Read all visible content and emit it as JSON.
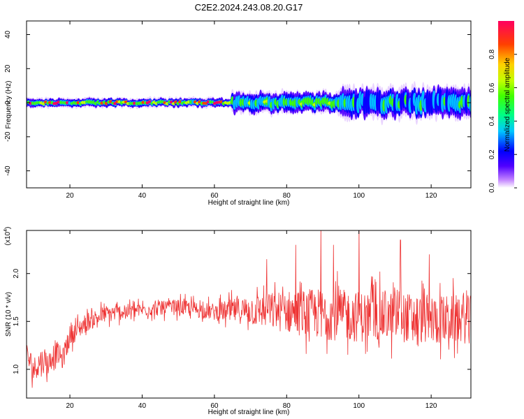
{
  "title": "C2E2.2024.243.08.20.G17",
  "chart_data": [
    {
      "type": "heatmap",
      "title": "C2E2.2024.243.08.20.G17",
      "xlabel": "Height of straight line (km)",
      "ylabel": "Frequency (Hz)",
      "xlim": [
        8,
        131
      ],
      "ylim": [
        -50,
        48
      ],
      "xticks": [
        20,
        40,
        60,
        80,
        100,
        120
      ],
      "yticks": [
        -40,
        -20,
        0,
        20,
        40
      ],
      "colorbar": {
        "label": "Normalized spectral amplitude",
        "range": [
          0.0,
          1.0
        ],
        "ticks": [
          "0.0",
          "0.2",
          "0.4",
          "0.6",
          "0.8"
        ],
        "tick_values": [
          0.0,
          0.2,
          0.4,
          0.6,
          0.8
        ],
        "colors": [
          "#ffffff",
          "#c080ff",
          "#5000ff",
          "#0000ff",
          "#00c8ff",
          "#00ff80",
          "#40ff00",
          "#c0ff00",
          "#ffd000",
          "#ff4000",
          "#ff0060"
        ]
      },
      "bands": [
        {
          "x_range": [
            8,
            65
          ],
          "freq_center": 0,
          "freq_halfwidth": 1.5,
          "peak_amplitude": 0.9,
          "description_level": "strong"
        },
        {
          "x_range": [
            65,
            95
          ],
          "freq_center": 0,
          "freq_halfwidth": 3.5,
          "peak_amplitude": 0.7
        },
        {
          "x_range": [
            95,
            131
          ],
          "freq_center": 0,
          "freq_halfwidth": 5,
          "peak_amplitude": 0.55
        }
      ]
    },
    {
      "type": "line",
      "xlabel": "Height of straight line (km)",
      "ylabel": "SNR (10 * v/v)",
      "y_multiplier": "(x10^4)",
      "xlim": [
        8,
        131
      ],
      "ylim": [
        0.7,
        2.45
      ],
      "xticks": [
        20,
        40,
        60,
        80,
        100,
        120
      ],
      "yticks": [
        "1.0",
        "1.5",
        "2.0"
      ],
      "ytick_values": [
        1.0,
        1.5,
        2.0
      ],
      "color": "#ee3333",
      "trend": {
        "x": [
          8,
          10,
          12,
          14,
          16,
          18,
          20,
          25,
          30,
          35,
          40,
          50,
          60,
          70,
          80,
          90,
          100,
          110,
          120,
          131
        ],
        "y": [
          1.15,
          1.0,
          1.1,
          1.05,
          1.2,
          1.1,
          1.35,
          1.5,
          1.58,
          1.6,
          1.62,
          1.65,
          1.6,
          1.62,
          1.6,
          1.58,
          1.55,
          1.55,
          1.52,
          1.52
        ]
      },
      "noise_envelope": {
        "x": [
          8,
          20,
          40,
          60,
          70,
          80,
          90,
          100,
          131
        ],
        "amplitude": [
          0.15,
          0.12,
          0.08,
          0.1,
          0.18,
          0.25,
          0.3,
          0.3,
          0.28
        ]
      },
      "peaks": [
        {
          "x": 74.5,
          "y": 2.15
        },
        {
          "x": 82.5,
          "y": 2.3
        },
        {
          "x": 89.5,
          "y": 2.5
        },
        {
          "x": 93.0,
          "y": 2.3
        },
        {
          "x": 100.0,
          "y": 2.5
        },
        {
          "x": 111.5,
          "y": 2.35
        },
        {
          "x": 119.5,
          "y": 2.2
        }
      ]
    }
  ]
}
